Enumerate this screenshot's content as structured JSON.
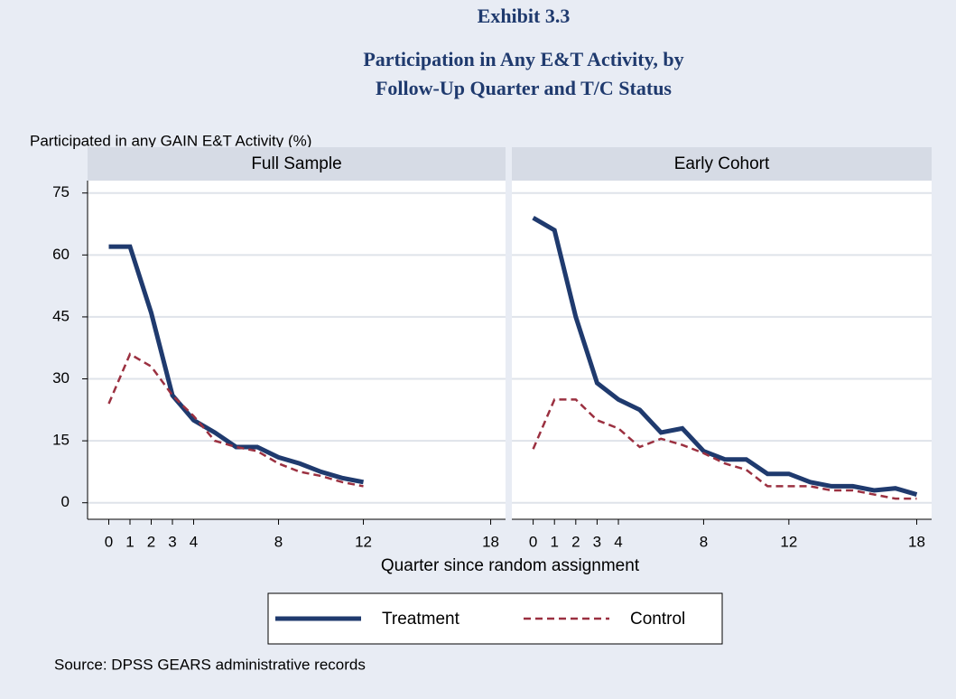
{
  "title": "Exhibit 3.3",
  "subtitle": [
    "Participation in Any E&T Activity, by",
    "Follow-Up Quarter and T/C Status"
  ],
  "y_label": "Participated in any GAIN E&T Activity (%)",
  "x_label": "Quarter since random assignment",
  "source": "Source: DPSS GEARS administrative records",
  "chart_data": [
    {
      "type": "line",
      "title": "Full Sample",
      "x": [
        0,
        1,
        2,
        3,
        4,
        5,
        6,
        7,
        8,
        9,
        10,
        11,
        12
      ],
      "series": [
        {
          "name": "Treatment",
          "color": "#1f3a6e",
          "values": [
            62,
            62,
            46,
            26,
            20,
            17,
            13.5,
            13.5,
            11,
            9.5,
            7.5,
            6,
            5
          ]
        },
        {
          "name": "Control",
          "color": "#9b3040",
          "values": [
            24,
            36,
            33,
            26,
            21,
            15,
            13.5,
            12.5,
            9.5,
            7.5,
            6.5,
            5,
            4
          ]
        }
      ],
      "xlim": [
        -1,
        18.7
      ],
      "ylim": [
        -4,
        78
      ],
      "xticks": [
        0,
        1,
        2,
        3,
        4,
        8,
        12,
        18
      ],
      "yticks": [
        0,
        15,
        30,
        45,
        60,
        75
      ],
      "grid": true
    },
    {
      "type": "line",
      "title": "Early Cohort",
      "x": [
        0,
        1,
        2,
        3,
        4,
        5,
        6,
        7,
        8,
        9,
        10,
        11,
        12,
        13,
        14,
        15,
        16,
        17,
        18
      ],
      "series": [
        {
          "name": "Treatment",
          "color": "#1f3a6e",
          "values": [
            69,
            66,
            45,
            29,
            25,
            22.5,
            17,
            18,
            12.5,
            10.5,
            10.5,
            7,
            7,
            5,
            4,
            4,
            3,
            3.5,
            2
          ]
        },
        {
          "name": "Control",
          "color": "#9b3040",
          "values": [
            13,
            25,
            25,
            20,
            18,
            13.5,
            15.5,
            14,
            12,
            9.5,
            8,
            4,
            4,
            4,
            3,
            3,
            2,
            1,
            1
          ]
        }
      ],
      "xlim": [
        -1,
        18.7
      ],
      "ylim": [
        -4,
        78
      ],
      "xticks": [
        0,
        1,
        2,
        3,
        4,
        8,
        12,
        18
      ],
      "yticks": [
        0,
        15,
        30,
        45,
        60,
        75
      ],
      "grid": true
    }
  ]
}
